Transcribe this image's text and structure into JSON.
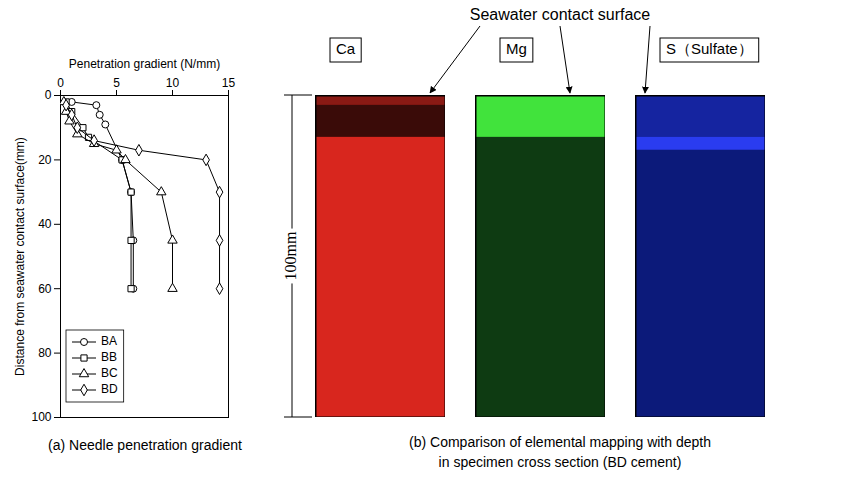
{
  "chart_data": {
    "type": "line",
    "x_label": "Penetration gradient (N/mm)",
    "y_label": "Distance from seawater contact surface(mm)",
    "caption": "(a) Needle penetration gradient",
    "xlim": [
      0,
      15
    ],
    "xticks": [
      0,
      5,
      10,
      15
    ],
    "ylim": [
      0,
      100
    ],
    "yticks": [
      0,
      20,
      40,
      60,
      80,
      100
    ],
    "grid": false,
    "legend": "lower left",
    "series": [
      {
        "name": "BA",
        "color": "#000000",
        "marker": "circle",
        "line_style": "solid",
        "x": [
          1,
          3.2,
          3.5,
          4,
          5.5,
          6.3,
          6.5,
          6.5
        ],
        "values": [
          2,
          3,
          6,
          9,
          20,
          30,
          45,
          60
        ]
      },
      {
        "name": "BB",
        "color": "#000000",
        "marker": "square",
        "line_style": "solid",
        "x": [
          0.5,
          1,
          2,
          2.5,
          5.5,
          6.3,
          6.3,
          6.3
        ],
        "values": [
          2,
          5,
          10,
          13,
          20,
          30,
          45,
          60
        ]
      },
      {
        "name": "BC",
        "color": "#000000",
        "marker": "triangle",
        "line_style": "solid",
        "x": [
          0.3,
          0.5,
          0.8,
          1.5,
          3,
          5,
          5.8,
          9,
          10,
          10
        ],
        "values": [
          2,
          5,
          8,
          12,
          15,
          17,
          20,
          30,
          45,
          60
        ]
      },
      {
        "name": "BD",
        "color": "#000000",
        "marker": "diamond",
        "line_style": "solid",
        "x": [
          0.5,
          1,
          1.5,
          3,
          7,
          13,
          14.2,
          14.2,
          14.2
        ],
        "values": [
          3,
          6,
          10,
          14,
          17,
          20,
          30,
          45,
          60
        ]
      }
    ]
  },
  "figure": {
    "annotation": "Seawater contact surface",
    "depth_label": "100mm",
    "depth": 100,
    "caption_lines": [
      "(b) Comparison of elemental mapping with depth",
      "in specimen cross section (BD cement)"
    ],
    "panels": [
      {
        "label": "Ca",
        "color": "#d8261e",
        "zones": [
          {
            "from": 0,
            "to": 3,
            "color": "#8a1a14"
          },
          {
            "from": 3,
            "to": 13,
            "color": "#3a0b08"
          }
        ]
      },
      {
        "label": "Mg",
        "color": "#0e3b12",
        "zones": [
          {
            "from": 0,
            "to": 13,
            "color": "#41e33c"
          }
        ]
      },
      {
        "label": "S（Sulfate）",
        "color": "#0c1a7a",
        "zones": [
          {
            "from": 0,
            "to": 13,
            "color": "#1524a0"
          },
          {
            "from": 13,
            "to": 17,
            "color": "#2a3cf0"
          }
        ]
      }
    ]
  }
}
